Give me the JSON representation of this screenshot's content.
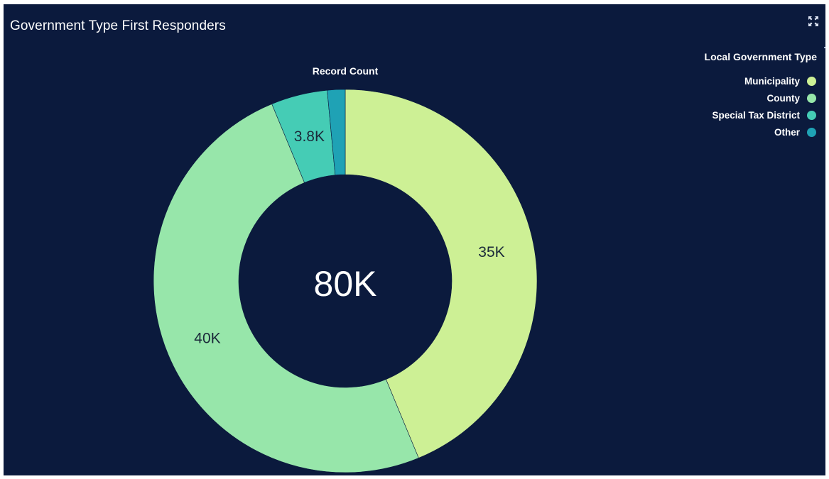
{
  "panel": {
    "title": "Government Type First Responders",
    "expand_icon": "expand-icon"
  },
  "legend": {
    "title": "Local Government Type",
    "items": [
      {
        "label": "Municipality",
        "color": "#cdf095"
      },
      {
        "label": "County",
        "color": "#97e6aa"
      },
      {
        "label": "Special Tax District",
        "color": "#45ccb5"
      },
      {
        "label": "Other",
        "color": "#1fa2b5"
      }
    ]
  },
  "chart_data": {
    "type": "pie",
    "variant": "donut",
    "series_label": "Record Count",
    "center_label": "80K",
    "categories": [
      "Municipality",
      "County",
      "Special Tax District",
      "Other"
    ],
    "values": [
      35000,
      40000,
      3800,
      1200
    ],
    "data_labels": [
      "35K",
      "40K",
      "3.8K",
      ""
    ],
    "colors": [
      "#cdf095",
      "#97e6aa",
      "#45ccb5",
      "#1fa2b5"
    ],
    "legend_position": "top-right"
  }
}
